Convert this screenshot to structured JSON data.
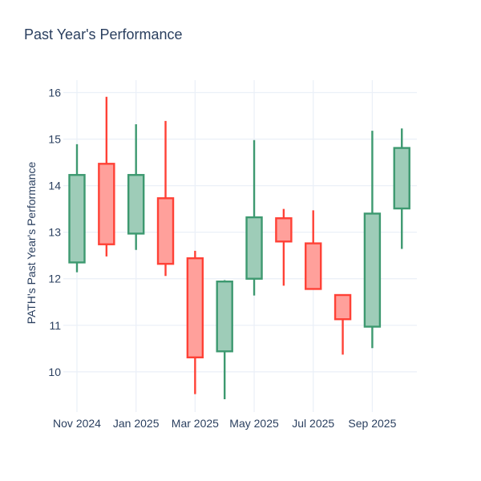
{
  "title": "Past Year's Performance",
  "colors": {
    "text": "#2a3f5f",
    "grid": "#ebf0f8",
    "background": "#ffffff",
    "increasing_line": "#3D9970",
    "increasing_fill": "#9ECCB8",
    "decreasing_line": "#FF4136",
    "decreasing_fill": "#FFA09B"
  },
  "chart_data": {
    "type": "candlestick",
    "title": "Past Year's Performance",
    "xlabel": "",
    "ylabel": "PATH's Past Year's Performance",
    "grid": true,
    "legend": false,
    "y_ticks": [
      10,
      11,
      12,
      13,
      14,
      15,
      16
    ],
    "ylim": [
      9.3,
      16.27
    ],
    "x_tick_labels": [
      "Nov 2024",
      "Jan 2025",
      "Mar 2025",
      "May 2025",
      "Jul 2025",
      "Sep 2025"
    ],
    "categories": [
      "Nov 2024",
      "Dec 2024",
      "Jan 2025",
      "Feb 2025",
      "Mar 2025",
      "Apr 2025",
      "May 2025",
      "Jun 2025",
      "Jul 2025",
      "Aug 2025",
      "Sep 2025",
      "Oct 2025"
    ],
    "series": [
      {
        "month": "Nov 2024",
        "open": 12.35,
        "high": 14.89,
        "low": 12.14,
        "close": 14.23,
        "direction": "increasing"
      },
      {
        "month": "Dec 2024",
        "open": 14.47,
        "high": 15.91,
        "low": 12.48,
        "close": 12.74,
        "direction": "decreasing"
      },
      {
        "month": "Jan 2025",
        "open": 12.97,
        "high": 15.32,
        "low": 12.62,
        "close": 14.23,
        "direction": "increasing"
      },
      {
        "month": "Feb 2025",
        "open": 13.73,
        "high": 15.39,
        "low": 12.06,
        "close": 12.32,
        "direction": "decreasing"
      },
      {
        "month": "Mar 2025",
        "open": 12.44,
        "high": 12.6,
        "low": 9.52,
        "close": 10.31,
        "direction": "decreasing"
      },
      {
        "month": "Apr 2025",
        "open": 10.44,
        "high": 11.97,
        "low": 9.41,
        "close": 11.94,
        "direction": "increasing"
      },
      {
        "month": "May 2025",
        "open": 12.0,
        "high": 14.98,
        "low": 11.64,
        "close": 13.32,
        "direction": "increasing"
      },
      {
        "month": "Jun 2025",
        "open": 13.3,
        "high": 13.5,
        "low": 11.85,
        "close": 12.8,
        "direction": "decreasing"
      },
      {
        "month": "Jul 2025",
        "open": 12.76,
        "high": 13.47,
        "low": 11.77,
        "close": 11.78,
        "direction": "decreasing"
      },
      {
        "month": "Aug 2025",
        "open": 11.65,
        "high": 11.65,
        "low": 10.37,
        "close": 11.13,
        "direction": "decreasing"
      },
      {
        "month": "Sep 2025",
        "open": 10.97,
        "high": 15.18,
        "low": 10.51,
        "close": 13.4,
        "direction": "increasing"
      },
      {
        "month": "Oct 2025",
        "open": 13.51,
        "high": 15.23,
        "low": 12.64,
        "close": 14.81,
        "direction": "increasing"
      }
    ]
  }
}
